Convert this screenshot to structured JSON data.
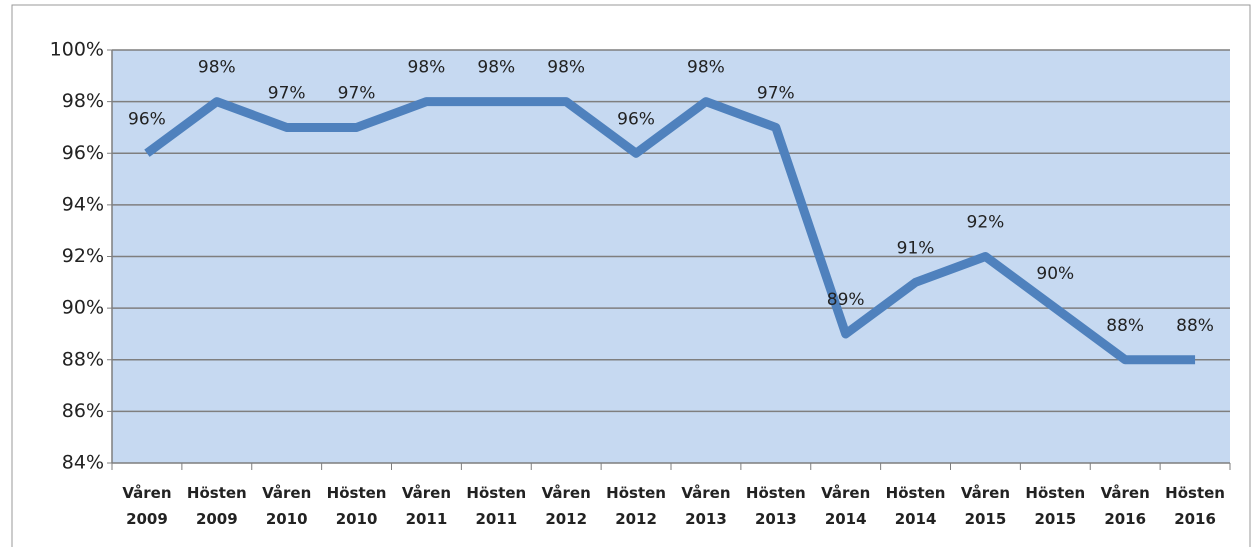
{
  "chart_data": {
    "type": "line",
    "categories": [
      "Våren 2009",
      "Hösten 2009",
      "Våren 2010",
      "Hösten 2010",
      "Våren 2011",
      "Hösten 2011",
      "Våren 2012",
      "Hösten 2012",
      "Våren 2013",
      "Hösten 2013",
      "Våren 2014",
      "Hösten 2014",
      "Våren 2015",
      "Hösten 2015",
      "Våren 2016",
      "Hösten 2016"
    ],
    "series": [
      {
        "color": "#4f81bd",
        "values": [
          96,
          98,
          97,
          97,
          98,
          98,
          98,
          96,
          98,
          97,
          89,
          91,
          92,
          90,
          88,
          88
        ],
        "value_labels": [
          "96%",
          "98%",
          "97%",
          "97%",
          "98%",
          "98%",
          "98%",
          "96%",
          "98%",
          "97%",
          "89%",
          "91%",
          "92%",
          "90%",
          "88%",
          "88%"
        ]
      }
    ],
    "ylim": [
      84,
      100
    ],
    "yticks": [
      {
        "value": 84,
        "label": "84%"
      },
      {
        "value": 86,
        "label": "86%"
      },
      {
        "value": 88,
        "label": "88%"
      },
      {
        "value": 90,
        "label": "90%"
      },
      {
        "value": 92,
        "label": "92%"
      },
      {
        "value": 94,
        "label": "94%"
      },
      {
        "value": 96,
        "label": "96%"
      },
      {
        "value": 98,
        "label": "98%"
      },
      {
        "value": 100,
        "label": "100%"
      }
    ],
    "grid": true
  }
}
